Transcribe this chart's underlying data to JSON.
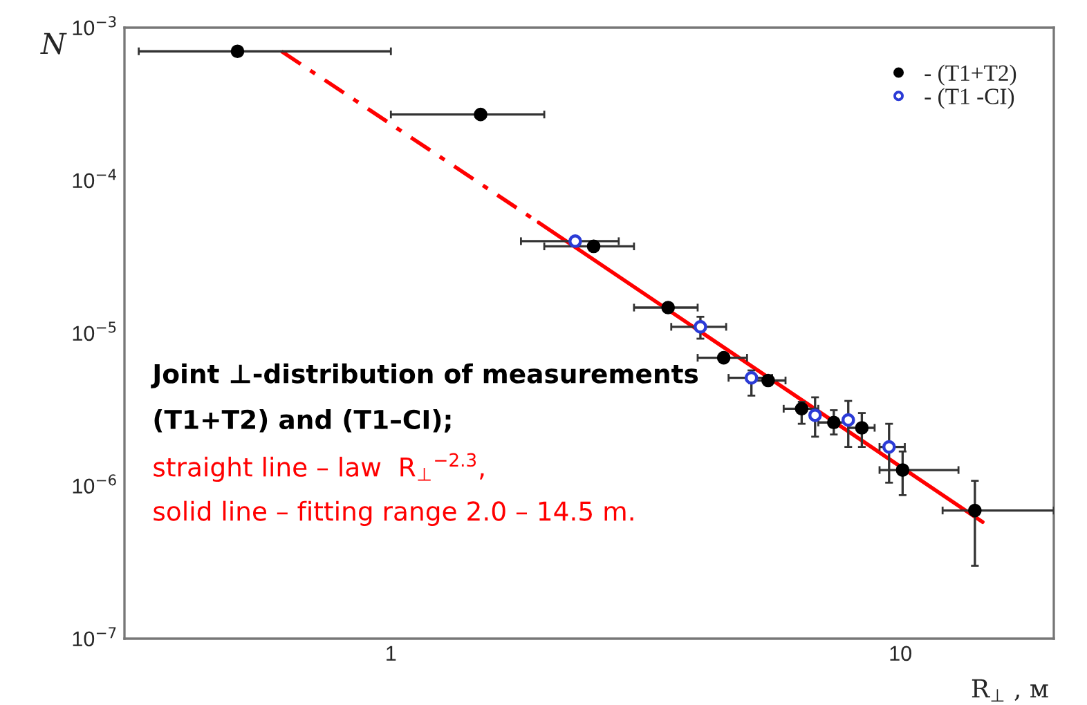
{
  "chart_data": {
    "type": "scatter",
    "xlabel": "R$_{⊥}$ , м",
    "ylabel": "N",
    "log": "xy",
    "xlim": [
      0.3,
      20
    ],
    "ylim": [
      1e-07,
      0.001
    ],
    "xticks": [
      1,
      10
    ],
    "yticks": [
      {
        "value": 1e-07,
        "label": "10$^{−7}$"
      },
      {
        "value": 1e-06,
        "label": "10$^{−6}$"
      },
      {
        "value": 1e-05,
        "label": "10$^{−5}$"
      },
      {
        "value": 0.0001,
        "label": "10$^{−4}$"
      },
      {
        "value": 0.001,
        "label": "10$^{−3}$"
      }
    ],
    "grid": false,
    "legend": "top right",
    "series": [
      {
        "name": "- (T1+T2)",
        "color": "#000000",
        "marker": "circle",
        "x": [
          0.5,
          1.5,
          2.5,
          3.5,
          4.5,
          5.5,
          6.4,
          7.4,
          8.4,
          10.1,
          14
        ],
        "values": [
          0.0007,
          0.00027,
          3.7e-05,
          1.47e-05,
          6.9e-06,
          4.9e-06,
          3.2e-06,
          2.6e-06,
          2.4e-06,
          1.27e-06,
          6.9e-07
        ],
        "xerrors": [
          [
            0.32,
            1.0
          ],
          0.5,
          0.5,
          0.5,
          0.5,
          0.45,
          0.5,
          0.5,
          0.5,
          [
            9.1,
            13.0
          ],
          [
            12.1,
            20
          ]
        ],
        "errors": [
          null,
          null,
          null,
          null,
          null,
          null,
          [
            2.55e-06,
            3.55e-06
          ],
          [
            2.17e-06,
            3.13e-06
          ],
          [
            1.8e-06,
            3e-06
          ],
          [
            8.7e-07,
            1.68e-06
          ],
          [
            3e-07,
            1.08e-06
          ]
        ]
      },
      {
        "name": "- (T1 -CI)",
        "color": "#2b3bd6",
        "marker": "open circle",
        "x": [
          2.3,
          4.05,
          5.1,
          6.8,
          7.9,
          9.5
        ],
        "values": [
          4e-05,
          1.1e-05,
          5.1e-06,
          2.9e-06,
          2.7e-06,
          1.8e-06
        ],
        "xerrors": [
          0.5,
          0.5,
          0.5,
          null,
          null,
          [
            9.1,
            10.2
          ]
        ],
        "errors": [
          null,
          [
            9.2e-06,
            1.28e-05
          ],
          [
            3.9e-06,
            5.7e-06
          ],
          [
            2.1e-06,
            3.8e-06
          ],
          [
            1.8e-06,
            3.6e-06
          ],
          [
            1.05e-06,
            2.55e-06
          ]
        ]
      },
      {
        "type": "line",
        "color": "#ff0000",
        "line_style": "dashed",
        "x": [
          0.61,
          1.95
        ],
        "values": [
          0.0007,
          5.3e-05
        ]
      },
      {
        "type": "line",
        "color": "#ff0000",
        "line_style": "solid",
        "x": [
          1.95,
          14.5
        ],
        "values": [
          5.3e-05,
          5.8e-07
        ]
      }
    ],
    "annotations": [
      "Joint ⊥-distribution of measurements",
      "(T1+T2) and (T1–CI);",
      "straight line – law  R$_{⊥}$$^{−2.3}$,",
      "solid line – fitting range 2.0 – 14.5 m."
    ]
  }
}
